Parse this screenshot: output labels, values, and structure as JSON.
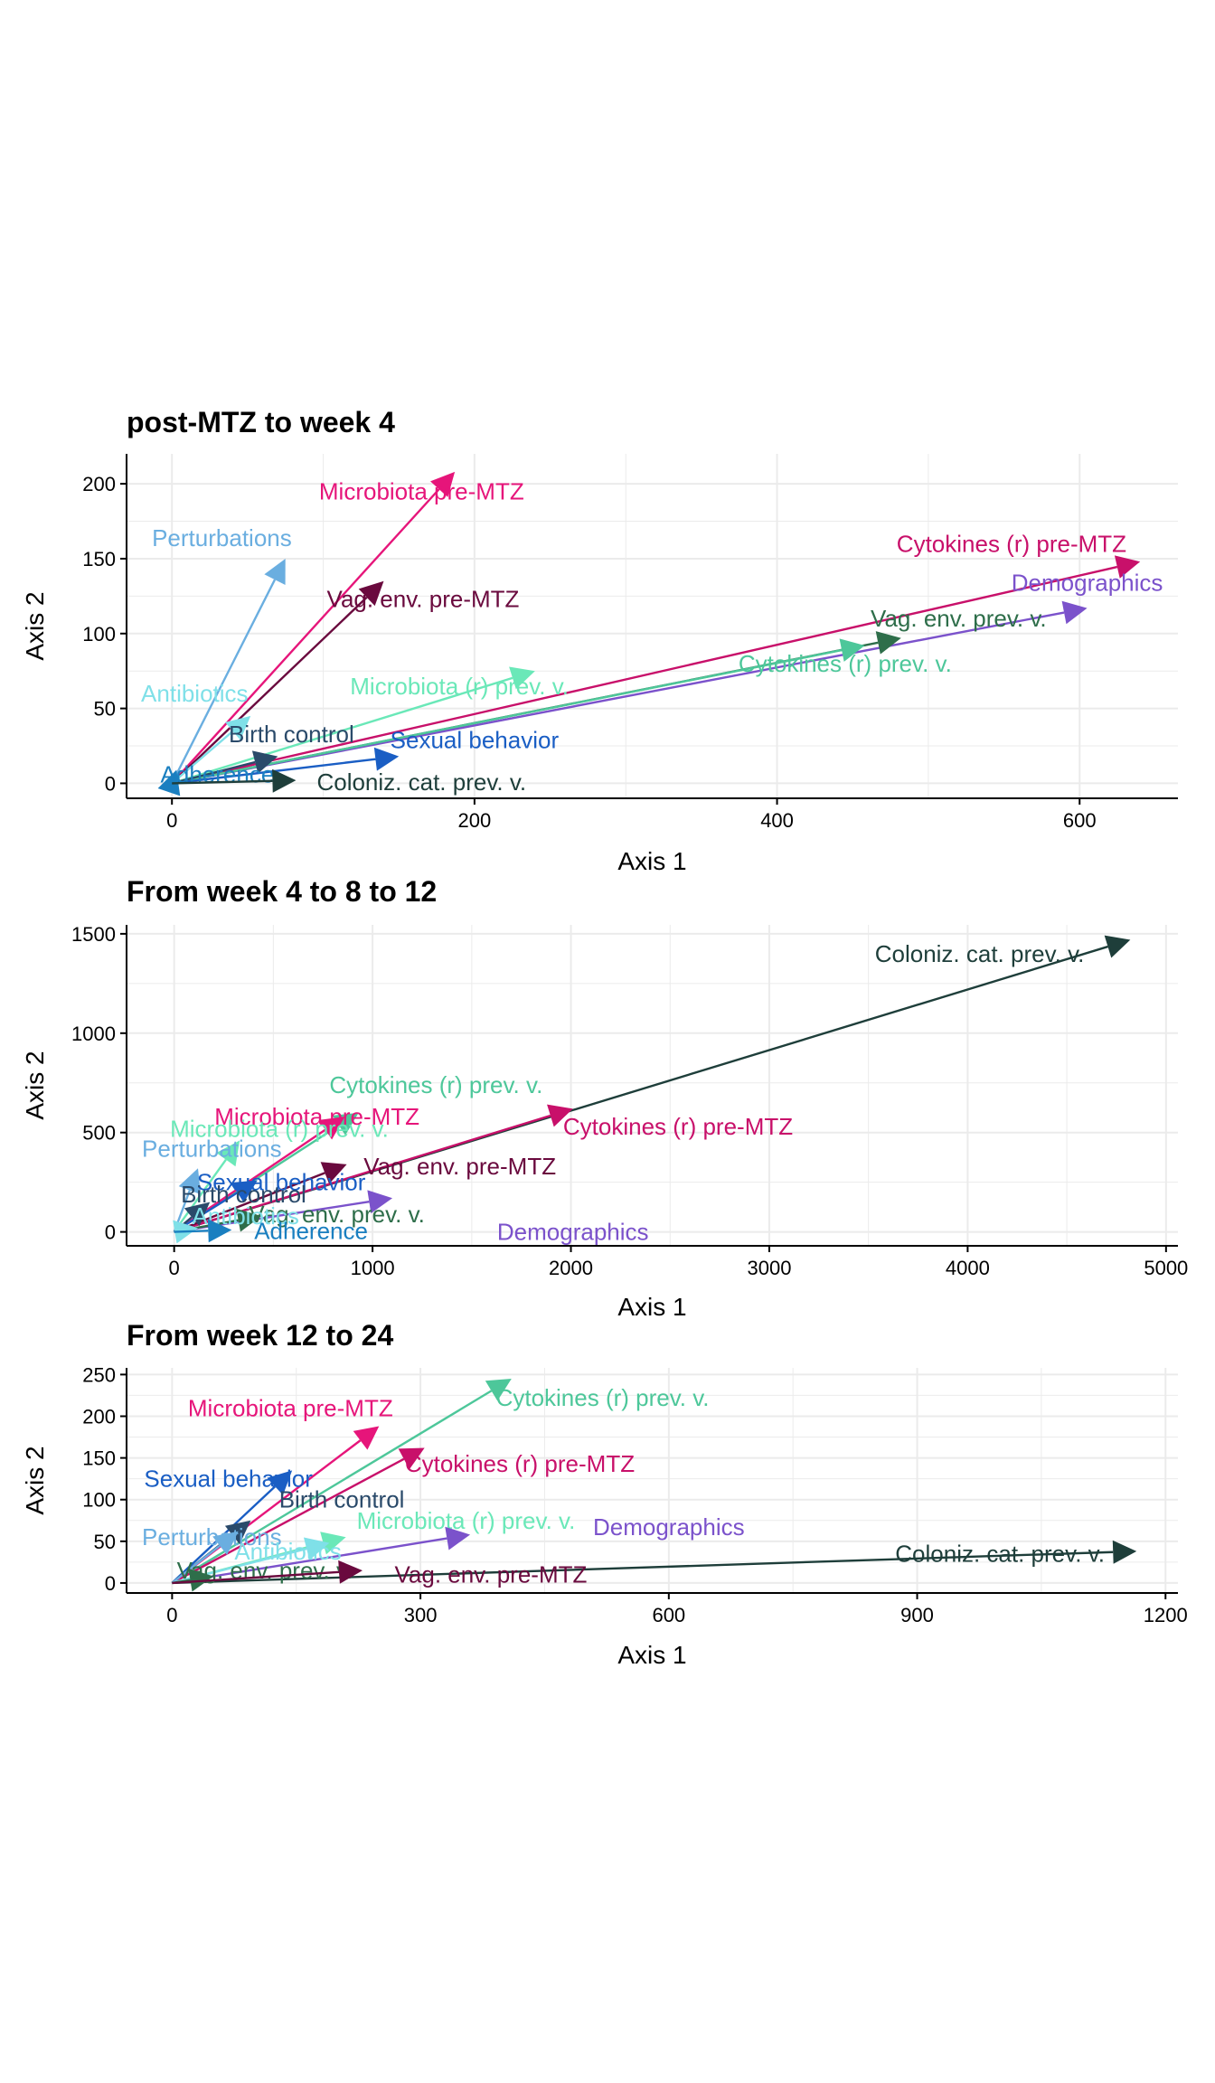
{
  "chart_data": [
    {
      "type": "vector-biplot",
      "title": "post-MTZ to week 4",
      "xlabel": "Axis 1",
      "ylabel": "Axis 2",
      "xlim": [
        -30,
        665
      ],
      "ylim": [
        -10,
        220
      ],
      "xticks": [
        0,
        200,
        400,
        600
      ],
      "yticks": [
        0,
        50,
        100,
        150,
        200
      ],
      "grid": true,
      "series": [
        {
          "name": "Microbiota pre-MTZ",
          "color": "#E6157A",
          "x": 187,
          "y": 208,
          "label_x": 165,
          "label_y": 195
        },
        {
          "name": "Perturbations",
          "color": "#6AAEE0",
          "x": 75,
          "y": 150,
          "label_x": 33,
          "label_y": 164
        },
        {
          "name": "Cytokines (r) pre-MTZ",
          "color": "#C8106A",
          "x": 640,
          "y": 148,
          "label_x": 555,
          "label_y": 160
        },
        {
          "name": "Demographics",
          "color": "#7B52CB",
          "x": 605,
          "y": 117,
          "label_x": 605,
          "label_y": 134
        },
        {
          "name": "Vag. env. pre-MTZ",
          "color": "#6A0A3E",
          "x": 140,
          "y": 135,
          "label_x": 166,
          "label_y": 123
        },
        {
          "name": "Vag. env. prev. v.",
          "color": "#2E6E4A",
          "x": 482,
          "y": 97,
          "label_x": 520,
          "label_y": 110
        },
        {
          "name": "Cytokines (r) prev. v.",
          "color": "#4DC79A",
          "x": 458,
          "y": 92,
          "label_x": 445,
          "label_y": 80
        },
        {
          "name": "Microbiota (r) prev. v.",
          "color": "#6AE8B8",
          "x": 240,
          "y": 75,
          "label_x": 190,
          "label_y": 65
        },
        {
          "name": "Antibiotics",
          "color": "#7FE0E8",
          "x": 52,
          "y": 45,
          "label_x": 15,
          "label_y": 60
        },
        {
          "name": "Birth control",
          "color": "#2A4A6A",
          "x": 70,
          "y": 18,
          "label_x": 79,
          "label_y": 33
        },
        {
          "name": "Sexual behavior",
          "color": "#1A5EC4",
          "x": 150,
          "y": 18,
          "label_x": 200,
          "label_y": 29
        },
        {
          "name": "Adherence",
          "color": "#1A7FC0",
          "x": 3,
          "y": 9,
          "label_x": 30,
          "label_y": 6
        },
        {
          "name": "Coloniz. cat. prev. v.",
          "color": "#1E3E3A",
          "x": 82,
          "y": 2,
          "label_x": 165,
          "label_y": 1
        }
      ]
    },
    {
      "type": "vector-biplot",
      "title": "From week 4 to 8 to 12",
      "xlabel": "Axis 1",
      "ylabel": "Axis 2",
      "xlim": [
        -240,
        5060
      ],
      "ylim": [
        -70,
        1545
      ],
      "xticks": [
        0,
        1000,
        2000,
        3000,
        4000,
        5000
      ],
      "yticks": [
        0,
        500,
        1000,
        1500
      ],
      "grid": true,
      "series": [
        {
          "name": "Coloniz. cat. prev. v.",
          "color": "#1E3E3A",
          "x": 4820,
          "y": 1470,
          "label_x": 4060,
          "label_y": 1400
        },
        {
          "name": "Cytokines (r) prev. v.",
          "color": "#4DC79A",
          "x": 930,
          "y": 600,
          "label_x": 1320,
          "label_y": 740
        },
        {
          "name": "Microbiota pre-MTZ",
          "color": "#E6157A",
          "x": 860,
          "y": 580,
          "label_x": 720,
          "label_y": 580
        },
        {
          "name": "Cytokines (r) pre-MTZ",
          "color": "#C8106A",
          "x": 2010,
          "y": 620,
          "label_x": 2540,
          "label_y": 530
        },
        {
          "name": "Microbiota (r) prev. v.",
          "color": "#6AE8B8",
          "x": 330,
          "y": 460,
          "label_x": 530,
          "label_y": 520
        },
        {
          "name": "Perturbations",
          "color": "#6AAEE0",
          "x": 120,
          "y": 320,
          "label_x": 190,
          "label_y": 420
        },
        {
          "name": "Vag. env. pre-MTZ",
          "color": "#6A0A3E",
          "x": 870,
          "y": 340,
          "label_x": 1440,
          "label_y": 330
        },
        {
          "name": "Sexual behavior",
          "color": "#1A5EC4",
          "x": 420,
          "y": 260,
          "label_x": 540,
          "label_y": 250
        },
        {
          "name": "Birth control",
          "color": "#2A4A6A",
          "x": 180,
          "y": 150,
          "label_x": 350,
          "label_y": 190
        },
        {
          "name": "Demographics",
          "color": "#7B52CB",
          "x": 1100,
          "y": 170,
          "label_x": 2010,
          "label_y": 0
        },
        {
          "name": "Vag. env. prev. v.",
          "color": "#2E6E4A",
          "x": 440,
          "y": 80,
          "label_x": 820,
          "label_y": 90
        },
        {
          "name": "Antibiotics",
          "color": "#7FE0E8",
          "x": 120,
          "y": 20,
          "label_x": 360,
          "label_y": 80
        },
        {
          "name": "Adherence",
          "color": "#1A7FC0",
          "x": 290,
          "y": 10,
          "label_x": 690,
          "label_y": 5
        }
      ]
    },
    {
      "type": "vector-biplot",
      "title": "From week 12 to 24",
      "xlabel": "Axis 1",
      "ylabel": "Axis 2",
      "xlim": [
        -55,
        1215
      ],
      "ylim": [
        -12,
        258
      ],
      "xticks": [
        0,
        300,
        600,
        900,
        1200
      ],
      "yticks": [
        0,
        50,
        100,
        150,
        200,
        250
      ],
      "grid": true,
      "series": [
        {
          "name": "Cytokines (r) prev. v.",
          "color": "#4DC79A",
          "x": 410,
          "y": 245,
          "label_x": 520,
          "label_y": 222
        },
        {
          "name": "Microbiota pre-MTZ",
          "color": "#E6157A",
          "x": 250,
          "y": 188,
          "label_x": 143,
          "label_y": 210
        },
        {
          "name": "Cytokines (r) pre-MTZ",
          "color": "#C8106A",
          "x": 305,
          "y": 162,
          "label_x": 420,
          "label_y": 143
        },
        {
          "name": "Sexual behavior",
          "color": "#1A5EC4",
          "x": 145,
          "y": 135,
          "label_x": 68,
          "label_y": 125
        },
        {
          "name": "Birth control",
          "color": "#2A4A6A",
          "x": 95,
          "y": 75,
          "label_x": 205,
          "label_y": 100
        },
        {
          "name": "Microbiota (r) prev. v.",
          "color": "#6AE8B8",
          "x": 210,
          "y": 55,
          "label_x": 355,
          "label_y": 75
        },
        {
          "name": "Demographics",
          "color": "#7B52CB",
          "x": 360,
          "y": 58,
          "label_x": 600,
          "label_y": 67
        },
        {
          "name": "Perturbations",
          "color": "#6AAEE0",
          "x": 80,
          "y": 62,
          "label_x": 48,
          "label_y": 55
        },
        {
          "name": "Antibiotics",
          "color": "#7FE0E8",
          "x": 190,
          "y": 48,
          "label_x": 140,
          "label_y": 38
        },
        {
          "name": "Coloniz. cat. prev. v.",
          "color": "#1E3E3A",
          "x": 1165,
          "y": 38,
          "label_x": 1000,
          "label_y": 35
        },
        {
          "name": "Vag. env. prev. v.",
          "color": "#2E6E4A",
          "x": 50,
          "y": 8,
          "label_x": 112,
          "label_y": 15
        },
        {
          "name": "Vag. env. pre-MTZ",
          "color": "#6A0A3E",
          "x": 230,
          "y": 15,
          "label_x": 385,
          "label_y": 10
        }
      ]
    }
  ]
}
